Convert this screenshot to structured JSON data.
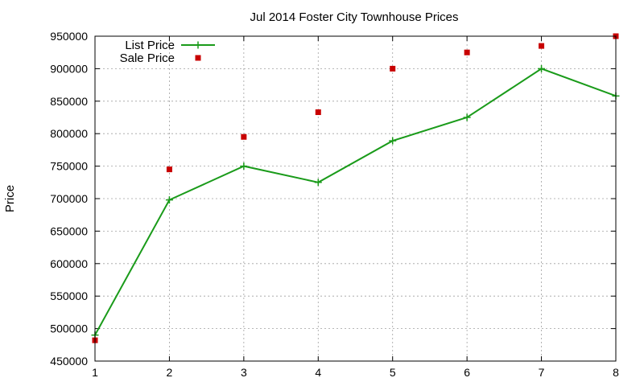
{
  "chart_data": {
    "type": "line",
    "title": "Jul 2014 Foster City Townhouse Prices",
    "xlabel": "",
    "ylabel": "Price",
    "xlim": [
      1,
      8
    ],
    "ylim": [
      450000,
      950000
    ],
    "x_ticks": [
      1,
      2,
      3,
      4,
      5,
      6,
      7,
      8
    ],
    "y_ticks": [
      450000,
      500000,
      550000,
      600000,
      650000,
      700000,
      750000,
      800000,
      850000,
      900000,
      950000
    ],
    "grid": true,
    "legend_position": "top-left",
    "series": [
      {
        "name": "List Price",
        "style": "line-with-plus-markers",
        "color": "#1a9b1a",
        "x": [
          1,
          2,
          3,
          4,
          5,
          6,
          7,
          8
        ],
        "values": [
          490000,
          698000,
          750000,
          725000,
          789000,
          825000,
          900000,
          858000
        ]
      },
      {
        "name": "Sale Price",
        "style": "square-markers",
        "color": "#c80000",
        "x": [
          1,
          2,
          3,
          4,
          5,
          6,
          7,
          8
        ],
        "values": [
          482000,
          745000,
          795000,
          833000,
          900000,
          925000,
          935000,
          950000
        ]
      }
    ]
  }
}
